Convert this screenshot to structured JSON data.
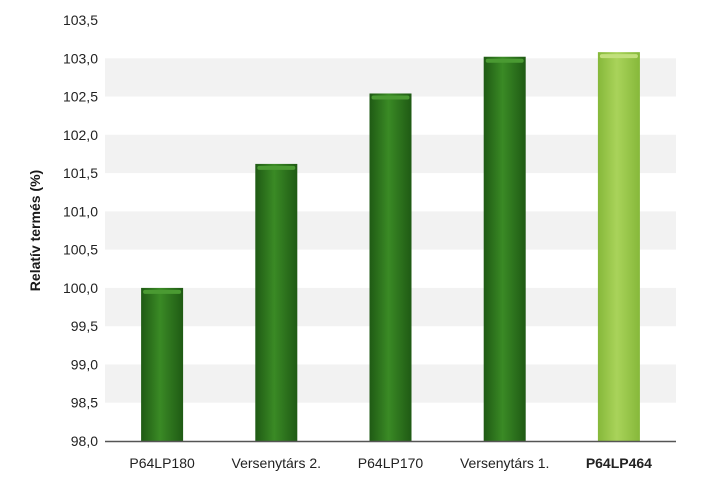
{
  "chart_data": {
    "type": "bar",
    "title": "",
    "xlabel": "",
    "ylabel": "Relatív termés (%)",
    "ylim": [
      98.0,
      103.5
    ],
    "yticks": [
      "98,0",
      "98,5",
      "99,0",
      "99,5",
      "100,0",
      "100,5",
      "101,0",
      "101,5",
      "102,0",
      "102,5",
      "103,0",
      "103,5"
    ],
    "categories": [
      "P64LP180",
      "Versenytárs 2.",
      "P64LP170",
      "Versenytárs 1.",
      "P64LP464"
    ],
    "values": [
      100.0,
      101.62,
      102.54,
      103.02,
      103.08
    ],
    "highlight_index": 4,
    "colors": {
      "bar": "#2e7d1f",
      "bar_dark": "#1f5a14",
      "bar_light": "#4a9a32",
      "highlight": "#9cc74a",
      "highlight_dark": "#7fae30",
      "highlight_light": "#c2e07c",
      "band": "#f2f2f2",
      "axis": "#555555"
    },
    "grid": true
  }
}
